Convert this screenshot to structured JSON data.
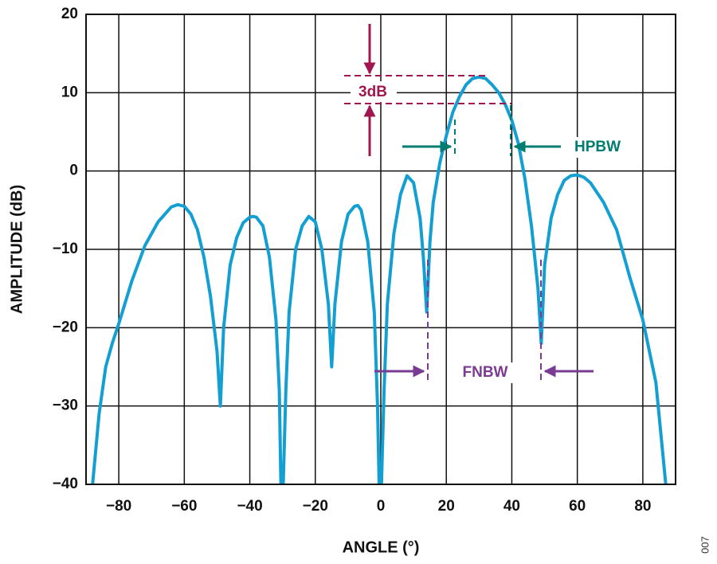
{
  "chart_data": {
    "type": "line",
    "xlabel": "ANGLE (°)",
    "ylabel": "AMPLITUDE (dB)",
    "color": "#139fd2",
    "x": [
      -88,
      -86,
      -84,
      -82,
      -80,
      -76,
      -72,
      -68,
      -64,
      -62,
      -60,
      -58,
      -56,
      -54,
      -52,
      -50,
      -49,
      -48,
      -46,
      -44,
      -42,
      -40,
      -39,
      -38,
      -36,
      -34,
      -32,
      -31,
      -30.5,
      -29.8,
      -29,
      -28,
      -26,
      -24,
      -22,
      -20,
      -18,
      -16,
      -15,
      -14,
      -12,
      -10,
      -8,
      -7,
      -6,
      -4,
      -2,
      -1,
      -0.5,
      0.2,
      1,
      2,
      4,
      6,
      8,
      10,
      12,
      13,
      14,
      15,
      16,
      18,
      20,
      22,
      24,
      26,
      28,
      30,
      32,
      34,
      36,
      38,
      40,
      42,
      44,
      46,
      48,
      49,
      50,
      52,
      54,
      56,
      58,
      60,
      62,
      64,
      68,
      72,
      76,
      80,
      84,
      87
    ],
    "values": [
      -40,
      -31,
      -25,
      -22,
      -19.5,
      -14,
      -9.5,
      -6.5,
      -4.6,
      -4.3,
      -4.5,
      -5.5,
      -7.5,
      -11,
      -16,
      -23,
      -30,
      -20,
      -12,
      -8.5,
      -6.6,
      -5.9,
      -5.8,
      -5.9,
      -7,
      -11,
      -19,
      -28,
      -40,
      -40,
      -28,
      -18,
      -10,
      -7,
      -5.8,
      -6.5,
      -10,
      -17,
      -25,
      -17,
      -9,
      -5.5,
      -4.5,
      -4.4,
      -5,
      -9,
      -18,
      -30,
      -40,
      -40,
      -28,
      -17,
      -8,
      -3,
      -0.6,
      -1.5,
      -6,
      -11,
      -18,
      -9,
      -4,
      1,
      4.5,
      7.5,
      9.5,
      11,
      11.8,
      12,
      11.8,
      11,
      10,
      8.5,
      6.5,
      3.5,
      -1,
      -7,
      -15,
      -22,
      -12,
      -6,
      -3,
      -1.2,
      -0.6,
      -0.5,
      -0.8,
      -1.5,
      -4,
      -7.5,
      -13.5,
      -19,
      -27,
      -40
    ],
    "xlim": [
      -90,
      90
    ],
    "ylim": [
      -40,
      20
    ],
    "xticks": [
      {
        "value": -80,
        "label": "−80"
      },
      {
        "value": -60,
        "label": "−60"
      },
      {
        "value": -40,
        "label": "−40"
      },
      {
        "value": -20,
        "label": "−20"
      },
      0,
      20,
      40,
      60,
      80
    ],
    "yticks": [
      {
        "value": -40,
        "label": "−40"
      },
      {
        "value": -30,
        "label": "−30"
      },
      {
        "value": -20,
        "label": "−20"
      },
      {
        "value": -10,
        "label": "−10"
      },
      0,
      10,
      20
    ],
    "grid": true,
    "annotations": [
      "3dB",
      "HPBW",
      "FNBW"
    ],
    "figure_id": "007"
  }
}
